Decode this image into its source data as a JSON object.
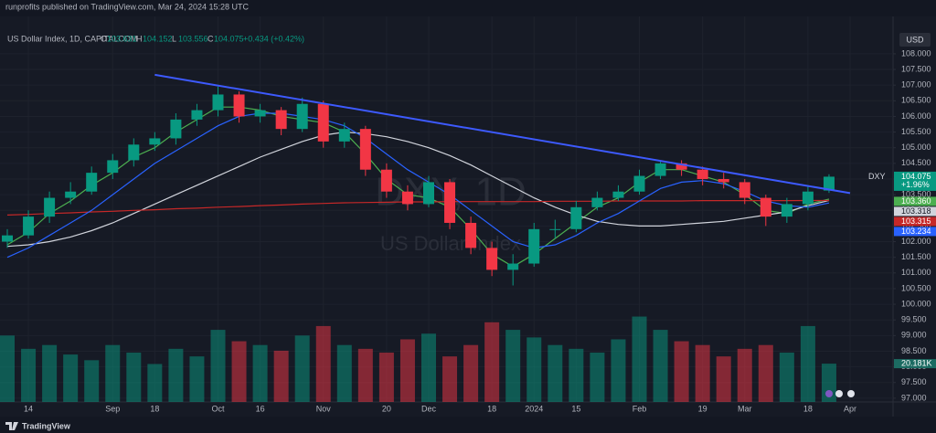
{
  "header": "runprofits published on TradingView.com, Mar 24, 2024 15:28 UTC",
  "footer": "TradingView",
  "chart_data": {
    "type": "candlestick",
    "legend": {
      "symbol": "US Dollar Index, 1D, CAPITALCOM",
      "o": "O",
      "h": "H",
      "l": "L",
      "c": "C",
      "change": "+0.434 (+0.42%)"
    },
    "watermark": [
      "DXY, 1D",
      "US Dollar Index"
    ],
    "currency": "USD",
    "ticker": "DXY",
    "change_label": "+1.96%",
    "categories": [
      null,
      "14",
      null,
      null,
      null,
      "Sep",
      null,
      "18",
      null,
      null,
      "Oct",
      null,
      "16",
      null,
      null,
      "Nov",
      null,
      null,
      "20",
      null,
      "Dec",
      null,
      null,
      "18",
      null,
      "2024",
      null,
      "15",
      null,
      null,
      "Feb",
      null,
      null,
      "19",
      null,
      "Mar",
      null,
      null,
      "18",
      null,
      "Apr"
    ],
    "open": [
      102.0,
      102.2,
      102.8,
      103.4,
      103.6,
      104.2,
      104.6,
      105.1,
      105.3,
      105.9,
      106.2,
      106.7,
      106.0,
      106.2,
      105.6,
      106.4,
      105.2,
      105.6,
      104.3,
      103.6,
      103.2,
      103.9,
      102.6,
      101.8,
      101.1,
      101.3,
      102.4,
      102.4,
      103.1,
      103.4,
      103.6,
      104.1,
      104.5,
      104.3,
      104.0,
      103.9,
      103.4,
      102.8,
      103.2,
      103.631,
      null
    ],
    "high": [
      102.4,
      103.0,
      103.6,
      103.9,
      104.4,
      104.8,
      105.3,
      105.5,
      106.1,
      106.4,
      106.95,
      106.8,
      106.4,
      106.3,
      106.6,
      106.5,
      105.8,
      105.7,
      104.5,
      103.8,
      104.1,
      104.0,
      102.8,
      102.0,
      101.6,
      102.6,
      102.7,
      103.3,
      103.6,
      103.8,
      104.3,
      104.6,
      104.6,
      104.4,
      104.2,
      104.0,
      103.5,
      103.4,
      103.8,
      104.152,
      null
    ],
    "low": [
      101.8,
      102.1,
      102.6,
      103.2,
      103.5,
      104.0,
      104.4,
      104.9,
      105.1,
      105.7,
      106.0,
      105.8,
      105.8,
      105.4,
      105.5,
      105.0,
      105.0,
      104.1,
      103.4,
      103.0,
      103.1,
      102.4,
      101.6,
      100.9,
      100.6,
      101.2,
      102.1,
      102.3,
      103.0,
      103.3,
      103.5,
      104.0,
      104.1,
      103.8,
      103.7,
      103.2,
      102.5,
      102.6,
      103.0,
      103.556,
      null
    ],
    "close": [
      102.2,
      102.8,
      103.4,
      103.6,
      104.2,
      104.6,
      105.1,
      105.3,
      105.9,
      106.2,
      106.7,
      106.0,
      106.2,
      105.6,
      106.4,
      105.2,
      105.6,
      104.3,
      103.6,
      103.2,
      103.9,
      102.6,
      101.8,
      101.1,
      101.3,
      102.4,
      102.4,
      103.1,
      103.4,
      103.6,
      104.1,
      104.5,
      104.3,
      104.0,
      103.9,
      103.4,
      102.8,
      103.2,
      103.6,
      104.075,
      null
    ],
    "up_color": "#089981",
    "down_color": "#f23645",
    "volume": {
      "values": [
        35,
        28,
        30,
        25,
        22,
        30,
        26,
        20,
        28,
        24,
        38,
        32,
        30,
        27,
        35,
        40,
        30,
        28,
        26,
        33,
        36,
        24,
        30,
        42,
        38,
        34,
        30,
        28,
        26,
        33,
        45,
        38,
        32,
        30,
        24,
        28,
        30,
        26,
        40,
        20.181,
        null
      ],
      "last_label": "20.181K",
      "ylim": [
        0,
        52
      ]
    },
    "series": [
      {
        "color": "#4caf50",
        "last_label": "103.360",
        "values": [
          101.9,
          102.3,
          102.9,
          103.3,
          103.8,
          104.2,
          104.7,
          105.0,
          105.5,
          105.9,
          106.3,
          106.3,
          106.2,
          106.0,
          105.9,
          105.8,
          105.5,
          104.8,
          104.0,
          103.5,
          103.4,
          103.1,
          102.4,
          101.6,
          101.2,
          101.6,
          102.1,
          102.6,
          103.1,
          103.4,
          103.9,
          104.3,
          104.3,
          104.1,
          103.9,
          103.5,
          103.0,
          102.9,
          103.2,
          103.36,
          null
        ]
      },
      {
        "color": "#d1d4dc",
        "last_label": "103.318",
        "values": [
          101.85,
          101.9,
          102.0,
          102.15,
          102.35,
          102.6,
          102.9,
          103.2,
          103.5,
          103.8,
          104.1,
          104.4,
          104.7,
          104.95,
          105.2,
          105.4,
          105.5,
          105.45,
          105.35,
          105.2,
          105.0,
          104.75,
          104.45,
          104.1,
          103.75,
          103.4,
          103.1,
          102.85,
          102.65,
          102.55,
          102.5,
          102.5,
          102.55,
          102.6,
          102.65,
          102.75,
          102.85,
          102.95,
          103.15,
          103.318,
          null
        ]
      },
      {
        "color": "#c62828",
        "last_label": "103.315",
        "values": [
          102.85,
          102.87,
          102.9,
          102.92,
          102.95,
          102.97,
          103.0,
          103.02,
          103.05,
          103.07,
          103.1,
          103.12,
          103.15,
          103.17,
          103.2,
          103.22,
          103.24,
          103.25,
          103.26,
          103.27,
          103.27,
          103.28,
          103.28,
          103.28,
          103.28,
          103.28,
          103.29,
          103.29,
          103.29,
          103.3,
          103.3,
          103.3,
          103.3,
          103.31,
          103.31,
          103.31,
          103.31,
          103.31,
          103.315,
          103.315,
          null
        ]
      },
      {
        "color": "#2962ff",
        "last_label": "103.234",
        "values": [
          101.5,
          101.8,
          102.2,
          102.6,
          103.0,
          103.5,
          104.0,
          104.5,
          104.9,
          105.3,
          105.7,
          106.0,
          106.1,
          106.1,
          106.0,
          105.9,
          105.7,
          105.3,
          104.8,
          104.3,
          103.9,
          103.5,
          103.0,
          102.5,
          102.0,
          101.8,
          101.9,
          102.2,
          102.6,
          102.9,
          103.3,
          103.7,
          103.9,
          103.95,
          103.85,
          103.6,
          103.3,
          103.15,
          103.1,
          103.234,
          null
        ]
      }
    ],
    "trendline": {
      "color": "#3d5afe",
      "from": [
        7,
        107.33
      ],
      "to": [
        40,
        103.55
      ]
    },
    "ylim": [
      96.88,
      108.61
    ],
    "yticks": [
      {
        "value": 97,
        "label": "97.000"
      },
      {
        "value": 97.5,
        "label": "97.500"
      },
      {
        "value": 98,
        "label": "98.000"
      },
      {
        "value": 98.5,
        "label": "98.500"
      },
      {
        "value": 99,
        "label": "99.000"
      },
      {
        "value": 99.5,
        "label": "99.500"
      },
      {
        "value": 100,
        "label": "100.000"
      },
      {
        "value": 100.5,
        "label": "100.500"
      },
      {
        "value": 101,
        "label": "101.000"
      },
      {
        "value": 101.5,
        "label": "101.500"
      },
      {
        "value": 102,
        "label": "102.000"
      },
      {
        "value": 102.5,
        "label": "102.500"
      },
      {
        "value": 103,
        "label": "103.000"
      },
      {
        "value": 103.5,
        "label": "103.500"
      },
      {
        "value": 104,
        "label": "104.000"
      },
      {
        "value": 104.5,
        "label": "104.500"
      },
      {
        "value": 105,
        "label": "105.000"
      },
      {
        "value": 105.5,
        "label": "105.500"
      },
      {
        "value": 106,
        "label": "106.000"
      },
      {
        "value": 106.5,
        "label": "106.500"
      },
      {
        "value": 107,
        "label": "107.000"
      },
      {
        "value": 107.5,
        "label": "107.500"
      },
      {
        "value": 108,
        "label": "108.000"
      }
    ],
    "grid": true
  }
}
